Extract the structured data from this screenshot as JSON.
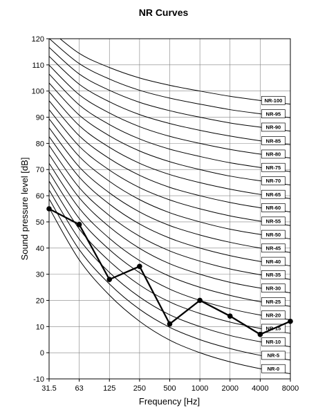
{
  "chart_data": {
    "type": "line",
    "title": "NR Curves",
    "xlabel": "Frequency [Hz]",
    "ylabel": "Sound pressure level [dB]",
    "x_scale": "log2",
    "x_ticks": [
      "31.5",
      "63",
      "125",
      "250",
      "500",
      "1000",
      "2000",
      "4000",
      "8000"
    ],
    "y_ticks": [
      -10,
      0,
      10,
      20,
      30,
      40,
      50,
      60,
      70,
      80,
      90,
      100,
      110,
      120
    ],
    "ylim": [
      -10,
      120
    ],
    "grid": true,
    "nr_curves": [
      {
        "name": "NR-0",
        "values": [
          55.4,
          35.5,
          22.0,
          12.0,
          4.8,
          0.0,
          -3.5,
          -6.1,
          -8.0
        ]
      },
      {
        "name": "NR-5",
        "values": [
          58.8,
          39.4,
          26.3,
          16.6,
          9.7,
          5.0,
          1.6,
          -1.0,
          -2.8
        ]
      },
      {
        "name": "NR-10",
        "values": [
          62.2,
          43.4,
          30.7,
          21.3,
          14.5,
          10.0,
          6.6,
          4.2,
          2.3
        ]
      },
      {
        "name": "NR-15",
        "values": [
          65.6,
          47.3,
          35.0,
          25.9,
          19.4,
          15.0,
          11.7,
          9.3,
          7.4
        ]
      },
      {
        "name": "NR-20",
        "values": [
          69.0,
          51.3,
          39.4,
          30.6,
          24.3,
          20.0,
          16.8,
          14.4,
          12.6
        ]
      },
      {
        "name": "NR-25",
        "values": [
          72.4,
          55.2,
          43.7,
          35.2,
          29.2,
          25.0,
          21.9,
          19.5,
          17.7
        ]
      },
      {
        "name": "NR-30",
        "values": [
          75.8,
          59.2,
          48.1,
          39.9,
          34.0,
          30.0,
          26.9,
          24.7,
          22.9
        ]
      },
      {
        "name": "NR-35",
        "values": [
          79.2,
          63.1,
          52.4,
          44.5,
          38.9,
          35.0,
          32.0,
          29.8,
          28.0
        ]
      },
      {
        "name": "NR-40",
        "values": [
          82.6,
          67.1,
          56.8,
          49.2,
          43.8,
          40.0,
          37.1,
          34.9,
          33.2
        ]
      },
      {
        "name": "NR-45",
        "values": [
          86.0,
          71.0,
          61.1,
          53.8,
          48.6,
          45.0,
          42.2,
          40.0,
          38.3
        ]
      },
      {
        "name": "NR-50",
        "values": [
          89.4,
          75.0,
          65.5,
          58.5,
          53.5,
          50.0,
          47.2,
          45.2,
          43.5
        ]
      },
      {
        "name": "NR-55",
        "values": [
          92.9,
          78.9,
          69.8,
          63.1,
          58.4,
          55.0,
          52.3,
          50.3,
          48.6
        ]
      },
      {
        "name": "NR-60",
        "values": [
          96.3,
          82.9,
          74.2,
          67.8,
          63.2,
          60.0,
          57.4,
          55.4,
          53.8
        ]
      },
      {
        "name": "NR-65",
        "values": [
          99.7,
          86.8,
          78.5,
          72.4,
          68.1,
          65.0,
          62.5,
          60.5,
          58.9
        ]
      },
      {
        "name": "NR-70",
        "values": [
          103.1,
          90.8,
          82.9,
          77.1,
          73.0,
          70.0,
          67.5,
          65.7,
          64.1
        ]
      },
      {
        "name": "NR-75",
        "values": [
          106.5,
          94.7,
          87.2,
          81.7,
          77.8,
          75.0,
          72.6,
          70.8,
          69.2
        ]
      },
      {
        "name": "NR-80",
        "values": [
          109.9,
          98.6,
          91.6,
          86.4,
          82.7,
          80.0,
          77.7,
          75.9,
          74.4
        ]
      },
      {
        "name": "NR-85",
        "values": [
          113.3,
          102.6,
          95.9,
          91.0,
          87.6,
          85.0,
          82.8,
          81.0,
          79.5
        ]
      },
      {
        "name": "NR-90",
        "values": [
          116.7,
          106.5,
          100.3,
          95.7,
          92.5,
          90.0,
          87.8,
          86.2,
          84.7
        ]
      },
      {
        "name": "NR-95",
        "values": [
          120.1,
          110.5,
          104.6,
          100.3,
          97.3,
          95.0,
          92.9,
          91.3,
          89.8
        ]
      },
      {
        "name": "NR-100",
        "values": [
          123.5,
          114.4,
          109.0,
          105.0,
          102.2,
          100.0,
          98.0,
          96.4,
          95.0
        ]
      }
    ],
    "measured": {
      "values": [
        55,
        49,
        28,
        33,
        11,
        20,
        14,
        7,
        12
      ]
    }
  }
}
